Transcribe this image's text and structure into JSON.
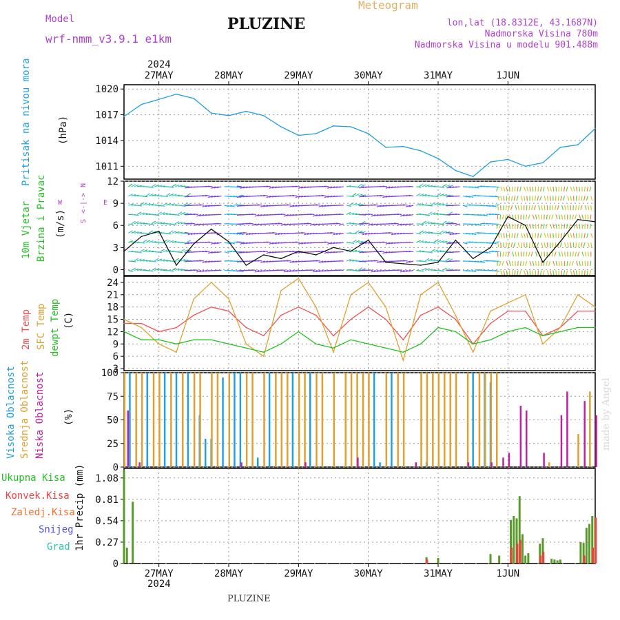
{
  "header": {
    "model_label": "Model",
    "model_name": "wrf-nmm_v3.9.1  e1km",
    "title": "PLUZINE",
    "subtitle": "Meteogram",
    "lonlat": "lon,lat (18.8312E, 43.1687N)",
    "elevation": "Nadmorska Visina 780m",
    "model_elevation": "Nadmorska Visina u modelu 901.488m",
    "year": "2024",
    "footer": "PLUZINE",
    "watermark": "made by Angel"
  },
  "colors": {
    "pressure": "#1e9fe0",
    "temp2m": "#f05050",
    "sfc": "#e0a030",
    "dewpt": "#20c020",
    "high_cloud": "#20a0e0",
    "mid_cloud": "#e0a030",
    "low_cloud": "#c020a0",
    "rain": "#5a9a2a",
    "conv": "#f04040",
    "frozen": "#f07030",
    "snow": "#5050f0",
    "grad": "#30c0b0",
    "wind_label": "#20c020",
    "dir_label": "#b040d0",
    "grid": "#999999"
  },
  "x_ticks": [
    "27MAY",
    "28MAY",
    "29MAY",
    "30MAY",
    "31MAY",
    "1JUN"
  ],
  "panels": {
    "pressure": {
      "labels": [
        "Pritisak na nivou mora",
        "(hPa)"
      ],
      "ticks": [
        "1020",
        "1017",
        "1014",
        "1011"
      ]
    },
    "wind": {
      "labels": [
        "10m Vjetar",
        "Brzina i Pravac",
        "(m/s)"
      ],
      "ticks": [
        "12",
        "9",
        "6",
        "3",
        "0"
      ],
      "dir_key": [
        "N",
        "<-|->",
        "S",
        "W",
        "E"
      ]
    },
    "temp": {
      "labels": [
        "2m Temp",
        "SFC Temp",
        "dewpt Temp",
        "(C)"
      ],
      "ticks": [
        "24",
        "21",
        "18",
        "15",
        "12",
        "9",
        "6",
        "3"
      ]
    },
    "cloud": {
      "labels": [
        "Visoka Oblacnost",
        "Srednja Oblacnost",
        "Niska Oblacnost",
        "(%)"
      ],
      "ticks": [
        "100",
        "75",
        "50",
        "25",
        "0"
      ]
    },
    "precip": {
      "labels": [
        "1hr Precip (mm)"
      ],
      "legend": [
        "Ukupna Kisa",
        "Konvek.Kisa",
        "Zaledj.Kisa",
        "Snijeg",
        "Grad"
      ],
      "ticks": [
        "1.08",
        "0.81",
        "0.54",
        "0.27",
        "0"
      ]
    }
  },
  "chart_data": [
    {
      "type": "line",
      "ylabel": "(hPa)",
      "x_unit": "hours from 26 May 2024 12:00",
      "ylim": [
        1009.5,
        1020.5
      ],
      "series": [
        {
          "name": "Pritisak na nivou mora",
          "x": [
            0,
            6,
            12,
            18,
            24,
            30,
            36,
            42,
            48,
            54,
            60,
            66,
            72,
            78,
            84,
            90,
            96,
            102,
            108,
            114,
            120,
            126,
            132,
            138,
            144,
            150,
            156,
            162
          ],
          "values": [
            1016.8,
            1018.2,
            1018.8,
            1019.4,
            1018.9,
            1017.2,
            1016.9,
            1017.4,
            1016.9,
            1015.6,
            1014.6,
            1014.8,
            1015.7,
            1015.6,
            1014.8,
            1013.2,
            1013.3,
            1012.8,
            1011.9,
            1010.5,
            1009.8,
            1011.5,
            1011.8,
            1011.0,
            1011.4,
            1013.2,
            1013.5,
            1015.4
          ]
        }
      ],
      "grid": true
    },
    {
      "type": "line",
      "ylabel": "(m/s)",
      "x_unit": "hours from 26 May 2024 12:00",
      "ylim": [
        -0.8,
        12
      ],
      "series": [
        {
          "name": "10m Vjetar",
          "x": [
            0,
            6,
            12,
            18,
            24,
            30,
            36,
            42,
            48,
            54,
            60,
            66,
            72,
            78,
            84,
            90,
            96,
            102,
            108,
            114,
            120,
            126,
            132,
            138,
            144,
            150,
            156,
            162
          ],
          "values": [
            2.5,
            4.5,
            5.2,
            0.6,
            3.5,
            5.5,
            3.8,
            0.6,
            2.0,
            1.5,
            2.5,
            2.0,
            3.0,
            2.5,
            4.0,
            1.0,
            0.8,
            0.6,
            1.0,
            4.0,
            1.5,
            3.0,
            7.2,
            6.0,
            1.0,
            3.8,
            6.8,
            6.5
          ]
        }
      ],
      "grid": true
    },
    {
      "type": "line",
      "ylabel": "(C)",
      "x_unit": "hours from 26 May 2024 12:00",
      "ylim": [
        2.5,
        25.5
      ],
      "series": [
        {
          "name": "2m Temp",
          "x": [
            0,
            6,
            12,
            18,
            24,
            30,
            36,
            42,
            48,
            54,
            60,
            66,
            72,
            78,
            84,
            90,
            96,
            102,
            108,
            114,
            120,
            126,
            132,
            138,
            144,
            150,
            156,
            162
          ],
          "values": [
            14,
            14,
            12,
            13,
            16,
            18,
            17,
            13,
            11,
            16,
            18,
            16,
            11,
            15,
            18,
            15,
            10,
            16,
            18,
            15,
            9,
            14,
            17,
            17,
            11,
            13,
            17,
            17
          ]
        },
        {
          "name": "SFC Temp",
          "x": [
            0,
            6,
            12,
            18,
            24,
            30,
            36,
            42,
            48,
            54,
            60,
            66,
            72,
            78,
            84,
            90,
            96,
            102,
            108,
            114,
            120,
            126,
            132,
            138,
            144,
            150,
            156,
            162
          ],
          "values": [
            15,
            13,
            9,
            7,
            20,
            24,
            20,
            9,
            6,
            22,
            25,
            18,
            7,
            21,
            24,
            18,
            5,
            21,
            24,
            16,
            7,
            17,
            19,
            21,
            9,
            13,
            21,
            18
          ]
        },
        {
          "name": "dewpt Temp",
          "x": [
            0,
            6,
            12,
            18,
            24,
            30,
            36,
            42,
            48,
            54,
            60,
            66,
            72,
            78,
            84,
            90,
            96,
            102,
            108,
            114,
            120,
            126,
            132,
            138,
            144,
            150,
            156,
            162
          ],
          "values": [
            12,
            10,
            10,
            9,
            10,
            10,
            9,
            8,
            7,
            9,
            12,
            9,
            8,
            10,
            9,
            8,
            7,
            9,
            13,
            12,
            9,
            10,
            12,
            13,
            11,
            12,
            13,
            13
          ]
        }
      ],
      "grid": true
    },
    {
      "type": "bar",
      "ylabel": "(%)",
      "x_unit": "hours from 26 May 2024 12:00",
      "ylim": [
        0,
        100
      ],
      "series": [
        {
          "name": "Visoka Oblacnost",
          "x": [
            2,
            8,
            14,
            18,
            22,
            26,
            28,
            30,
            34,
            38,
            40,
            46,
            50,
            58,
            64,
            86,
            88,
            92,
            104,
            120,
            124,
            126
          ],
          "values": [
            100,
            100,
            100,
            100,
            100,
            55,
            30,
            30,
            95,
            100,
            100,
            10,
            100,
            100,
            100,
            100,
            5,
            100,
            5,
            100,
            100,
            90
          ]
        },
        {
          "name": "Srednja Oblacnost",
          "x": [
            0,
            4,
            6,
            10,
            12,
            16,
            20,
            24,
            26,
            30,
            32,
            36,
            42,
            44,
            48,
            52,
            54,
            56,
            60,
            62,
            66,
            68,
            72,
            76,
            78,
            80,
            82,
            84,
            90,
            94,
            96,
            102,
            104,
            106,
            108,
            110,
            112,
            114,
            118,
            122,
            124,
            126,
            128,
            146,
            156,
            160
          ],
          "values": [
            100,
            100,
            100,
            100,
            100,
            100,
            100,
            100,
            100,
            100,
            100,
            100,
            100,
            100,
            100,
            100,
            100,
            100,
            100,
            100,
            100,
            100,
            100,
            100,
            100,
            100,
            100,
            100,
            100,
            100,
            100,
            100,
            100,
            100,
            100,
            100,
            100,
            100,
            100,
            100,
            100,
            100,
            100,
            5,
            35,
            80
          ]
        },
        {
          "name": "Niska Oblacnost",
          "x": [
            1,
            5,
            40,
            62,
            80,
            100,
            118,
            126,
            130,
            132,
            136,
            138,
            144,
            150,
            152,
            158,
            162
          ],
          "values": [
            60,
            5,
            5,
            5,
            10,
            5,
            5,
            5,
            10,
            15,
            65,
            60,
            15,
            55,
            80,
            70,
            55
          ]
        }
      ],
      "grid": true
    },
    {
      "type": "bar",
      "ylabel": "1hr Precip (mm)",
      "x_unit": "hours from 26 May 2024 12:00",
      "ylim": [
        0,
        1.2
      ],
      "series": [
        {
          "name": "Ukupna Kisa",
          "x": [
            0,
            1,
            3,
            104,
            108,
            126,
            129,
            133,
            134,
            135,
            136,
            137,
            138,
            139,
            143,
            144,
            147,
            148,
            149,
            150,
            157,
            158,
            159,
            160,
            161,
            162
          ],
          "values": [
            1.18,
            0.2,
            0.78,
            0.08,
            0.07,
            0.12,
            0.1,
            0.55,
            0.6,
            0.57,
            0.85,
            0.37,
            0.1,
            0.13,
            0.25,
            0.32,
            0.06,
            0.05,
            0.04,
            0.05,
            0.27,
            0.26,
            0.45,
            0.5,
            0.6,
            0.58
          ]
        },
        {
          "name": "Konvek.Kisa",
          "x": [
            104,
            133,
            135,
            136,
            143,
            144,
            158,
            161,
            162
          ],
          "values": [
            0.05,
            0.2,
            0.25,
            0.3,
            0.1,
            0.15,
            0.1,
            0.2,
            0.58
          ]
        }
      ],
      "grid": true
    }
  ]
}
